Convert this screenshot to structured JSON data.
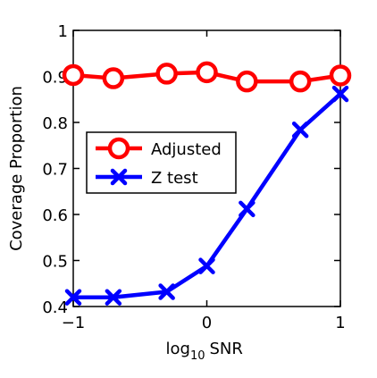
{
  "chart_data": {
    "type": "line",
    "xlabel": "log",
    "xlabel_sub": "10",
    "xlabel_suffix": "SNR",
    "ylabel": "Coverage Proportion",
    "xlim": [
      -1,
      1
    ],
    "ylim": [
      0.4,
      1
    ],
    "x_ticks": [
      -1,
      0,
      1
    ],
    "x_tick_labels": [
      "−1",
      "0",
      "1"
    ],
    "y_ticks": [
      0.4,
      0.5,
      0.6,
      0.7,
      0.8,
      0.9,
      1
    ],
    "y_tick_labels": [
      "0.4",
      "0.5",
      "0.6",
      "0.7",
      "0.8",
      "0.9",
      "1"
    ],
    "grid": false,
    "legend_position": "upper-left",
    "series": [
      {
        "name": "Adjusted",
        "color": "#ff0000",
        "marker": "circle",
        "x": [
          -1,
          -0.7,
          -0.3,
          0,
          0.3,
          0.7,
          1
        ],
        "values": [
          0.903,
          0.896,
          0.906,
          0.909,
          0.889,
          0.889,
          0.902
        ]
      },
      {
        "name": "Z test",
        "color": "#0000ff",
        "marker": "x",
        "x": [
          -1,
          -0.7,
          -0.3,
          0,
          0.3,
          0.7,
          1
        ],
        "values": [
          0.42,
          0.42,
          0.432,
          0.488,
          0.612,
          0.784,
          0.862
        ]
      }
    ]
  }
}
